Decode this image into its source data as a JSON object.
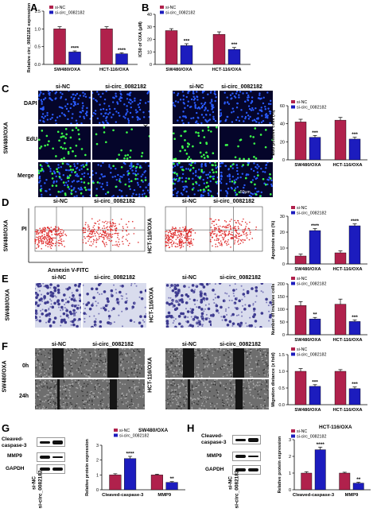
{
  "panels": {
    "A": "A",
    "B": "B",
    "C": "C",
    "D": "D",
    "E": "E",
    "F": "F",
    "G": "G",
    "H": "H"
  },
  "groups": {
    "sw480": "SW480/OXA",
    "hct116": "HCT-116/OXA"
  },
  "conditions": {
    "nc": "si-NC",
    "si": "si-circ_0082182"
  },
  "colors": {
    "nc": "#b0214c",
    "si": "#1c1cbe"
  },
  "panelC": {
    "rows": [
      "DAPI",
      "EdU",
      "Merge"
    ],
    "scale_bar": "50μm"
  },
  "panelD": {
    "ylabel": "PI",
    "xlabel": "Annexin V-FITC"
  },
  "panelF": {
    "rows": [
      "0h",
      "24h"
    ]
  },
  "panelG": {
    "title": "SW480/OXA",
    "blot_labels": [
      "Cleaved-\ncaspase-3",
      "MMP9",
      "GAPDH"
    ]
  },
  "panelH": {
    "title": "HCT-116/OXA",
    "blot_labels": [
      "Cleaved-\ncaspase-3",
      "MMP9",
      "GAPDH"
    ]
  },
  "chart_data": [
    {
      "panel": "A",
      "type": "bar",
      "categories": [
        "SW480/OXA",
        "HCT-116/OXA"
      ],
      "series": [
        {
          "name": "si-NC",
          "values": [
            1.0,
            1.0
          ],
          "err": [
            0.06,
            0.06
          ]
        },
        {
          "name": "si-circ_0082182",
          "values": [
            0.35,
            0.3
          ],
          "err": [
            0.03,
            0.03
          ]
        }
      ],
      "ylabel": "Relative circ_0082182 expression",
      "ylim": [
        0,
        1.5
      ],
      "yticks": [
        0.0,
        0.5,
        1.0,
        1.5
      ],
      "annotations": [
        "****",
        "****"
      ]
    },
    {
      "panel": "B",
      "type": "bar",
      "categories": [
        "SW480/OXA",
        "HCT-116/OXA"
      ],
      "series": [
        {
          "name": "si-NC",
          "values": [
            27,
            24
          ],
          "err": [
            1.5,
            2
          ]
        },
        {
          "name": "si-circ_0082182",
          "values": [
            15,
            12
          ],
          "err": [
            1.5,
            1.5
          ]
        }
      ],
      "ylabel": "IC50 of OXA (μM)",
      "ylim": [
        0,
        40
      ],
      "yticks": [
        0,
        10,
        20,
        30,
        40
      ],
      "annotations": [
        "***",
        "***"
      ]
    },
    {
      "panel": "C",
      "type": "bar",
      "categories": [
        "SW480/OXA",
        "HCT-116/OXA"
      ],
      "series": [
        {
          "name": "si-NC",
          "values": [
            42,
            44
          ],
          "err": [
            3,
            3
          ]
        },
        {
          "name": "si-circ_0082182",
          "values": [
            25,
            23
          ],
          "err": [
            2,
            2
          ]
        }
      ],
      "ylabel": "EdU positive cells (%)",
      "ylim": [
        0,
        60
      ],
      "yticks": [
        0,
        20,
        40,
        60
      ],
      "annotations": [
        "***",
        "***"
      ]
    },
    {
      "panel": "D",
      "type": "bar",
      "categories": [
        "SW480/OXA",
        "HCT-116/OXA"
      ],
      "series": [
        {
          "name": "si-NC",
          "values": [
            5,
            7
          ],
          "err": [
            1.2,
            1.2
          ]
        },
        {
          "name": "si-circ_0082182",
          "values": [
            21,
            24
          ],
          "err": [
            1.2,
            1.2
          ]
        }
      ],
      "ylabel": "Apoptosis rate (%)",
      "ylim": [
        0,
        30
      ],
      "yticks": [
        0,
        10,
        20,
        30
      ],
      "annotations": [
        "****",
        "****"
      ]
    },
    {
      "panel": "E",
      "type": "bar",
      "categories": [
        "SW480/OXA",
        "HCT-116/OXA"
      ],
      "series": [
        {
          "name": "si-NC",
          "values": [
            115,
            120
          ],
          "err": [
            15,
            20
          ]
        },
        {
          "name": "si-circ_0082182",
          "values": [
            62,
            52
          ],
          "err": [
            6,
            6
          ]
        }
      ],
      "ylabel": "Number of invasive cells",
      "ylim": [
        0,
        200
      ],
      "yticks": [
        0,
        50,
        100,
        150,
        200
      ],
      "annotations": [
        "**",
        "***"
      ]
    },
    {
      "panel": "F",
      "type": "bar",
      "categories": [
        "SW480/OXA",
        "HCT-116/OXA"
      ],
      "series": [
        {
          "name": "si-NC",
          "values": [
            1.0,
            1.0
          ],
          "err": [
            0.08,
            0.05
          ]
        },
        {
          "name": "si-circ_0082182",
          "values": [
            0.55,
            0.48
          ],
          "err": [
            0.05,
            0.05
          ]
        }
      ],
      "ylabel": "Migration distance (x fold)",
      "ylim": [
        0,
        1.5
      ],
      "yticks": [
        0.0,
        0.5,
        1.0,
        1.5
      ],
      "annotations": [
        "***",
        "***"
      ]
    },
    {
      "panel": "G",
      "type": "bar",
      "categories": [
        "Cleaved-caspase-3",
        "MMP9"
      ],
      "series": [
        {
          "name": "si-NC",
          "values": [
            1.0,
            1.0
          ],
          "err": [
            0.08,
            0.05
          ]
        },
        {
          "name": "si-circ_0082182",
          "values": [
            2.1,
            0.5
          ],
          "err": [
            0.15,
            0.05
          ]
        }
      ],
      "ylabel": "Relative protein expression",
      "ylim": [
        0,
        3
      ],
      "yticks": [
        0,
        1,
        2,
        3
      ],
      "annotations": [
        "****",
        "**"
      ]
    },
    {
      "panel": "H",
      "type": "bar",
      "categories": [
        "Cleaved-caspase-3",
        "MMP9"
      ],
      "series": [
        {
          "name": "si-NC",
          "values": [
            1.0,
            1.0
          ],
          "err": [
            0.08,
            0.05
          ]
        },
        {
          "name": "si-circ_0082182",
          "values": [
            2.4,
            0.4
          ],
          "err": [
            0.15,
            0.05
          ]
        }
      ],
      "ylabel": "Relative protein expression",
      "ylim": [
        0,
        3
      ],
      "yticks": [
        0,
        1,
        2,
        3
      ],
      "annotations": [
        "****",
        "**"
      ]
    }
  ]
}
